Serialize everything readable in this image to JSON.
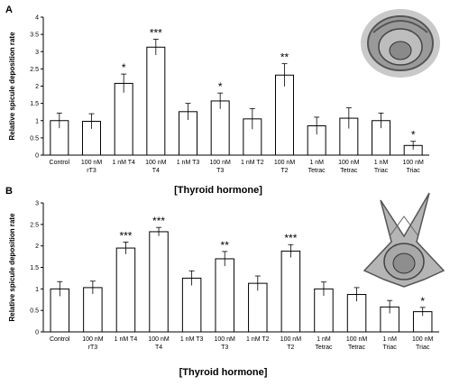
{
  "chart_data": [
    {
      "panel": "A",
      "type": "bar",
      "ylabel": "Relative spicule deposition rate",
      "xlabel": "[Thyroid hormone]",
      "ylim": [
        0,
        4
      ],
      "yticks": [
        "0",
        "0.5",
        "1",
        "1.5",
        "2",
        "2.5",
        "3",
        "3.5",
        "4"
      ],
      "grid": false,
      "categories": [
        [
          "Control"
        ],
        [
          "100 nM",
          "rT3"
        ],
        [
          "1 nM T4"
        ],
        [
          "100 nM",
          "T4"
        ],
        [
          "1 nM T3"
        ],
        [
          "100 nM",
          "T3"
        ],
        [
          "1 nM T2"
        ],
        [
          "100 nM",
          "T2"
        ],
        [
          "1 nM",
          "Tetrac"
        ],
        [
          "100 nM",
          "Tetrac"
        ],
        [
          "1 nM",
          "Triac"
        ],
        [
          "100 nM",
          "Triac"
        ]
      ],
      "values": [
        1.0,
        0.98,
        2.08,
        3.13,
        1.26,
        1.57,
        1.05,
        2.32,
        0.85,
        1.07,
        1.0,
        0.28
      ],
      "errors": [
        0.22,
        0.22,
        0.27,
        0.23,
        0.24,
        0.23,
        0.3,
        0.33,
        0.25,
        0.3,
        0.22,
        0.12
      ],
      "significance": [
        "",
        "",
        "*",
        "***",
        "",
        "*",
        "",
        "**",
        "",
        "",
        "",
        "*"
      ],
      "image_description_icon": "sea-urchin-larva-photo"
    },
    {
      "panel": "B",
      "type": "bar",
      "ylabel": "Relative spicule deposition rate",
      "xlabel": "[Thyroid hormone]",
      "ylim": [
        0,
        3
      ],
      "yticks": [
        "0",
        "0.5",
        "1",
        "1.5",
        "2",
        "2.5",
        "3"
      ],
      "grid": false,
      "categories": [
        [
          "Control"
        ],
        [
          "100 nM",
          "rT3"
        ],
        [
          "1 nM T4"
        ],
        [
          "100 nM",
          "T4"
        ],
        [
          "1 nM T3"
        ],
        [
          "100 nM",
          "T3"
        ],
        [
          "1 nM T2"
        ],
        [
          "100 nM",
          "T2"
        ],
        [
          "1 nM",
          "Tetrac"
        ],
        [
          "100 nM",
          "Tetrac"
        ],
        [
          "1 nM",
          "Triac"
        ],
        [
          "100 nM",
          "Triac"
        ]
      ],
      "values": [
        1.0,
        1.03,
        1.95,
        2.33,
        1.25,
        1.7,
        1.13,
        1.88,
        1.0,
        0.87,
        0.58,
        0.47
      ],
      "errors": [
        0.17,
        0.15,
        0.14,
        0.1,
        0.17,
        0.17,
        0.17,
        0.15,
        0.16,
        0.16,
        0.15,
        0.1
      ],
      "significance": [
        "",
        "",
        "***",
        "***",
        "",
        "**",
        "",
        "***",
        "",
        "",
        "",
        "*"
      ],
      "image_description_icon": "sea-urchin-pluteus-photo"
    }
  ]
}
